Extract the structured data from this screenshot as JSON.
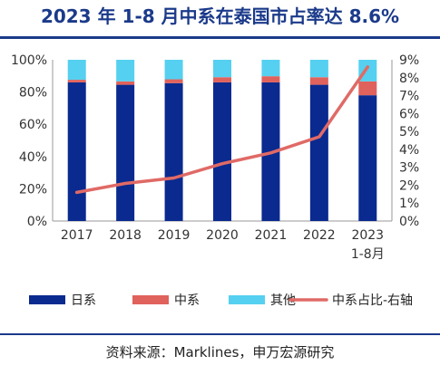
{
  "title": "2023 年 1-8 月中系在泰国市占率达 8.6%",
  "source": "资料来源：Marklines，申万宏源研究",
  "colors": {
    "japan": "#0a2a8f",
    "china": "#e0625c",
    "other": "#55d0f0",
    "line": "#e06a66",
    "title": "#1b3a8a"
  },
  "chart_data": {
    "type": "bar",
    "stacked": true,
    "categories": [
      "2017",
      "2018",
      "2019",
      "2020",
      "2021",
      "2022",
      "2023 1-8月"
    ],
    "category_lines": [
      [
        "2017"
      ],
      [
        "2018"
      ],
      [
        "2019"
      ],
      [
        "2020"
      ],
      [
        "2021"
      ],
      [
        "2022"
      ],
      [
        "2023",
        "1-8月"
      ]
    ],
    "series": [
      {
        "name": "日系",
        "axis": "left",
        "values": [
          86,
          84.5,
          85.5,
          86,
          86,
          84.5,
          78
        ]
      },
      {
        "name": "中系",
        "axis": "left",
        "values": [
          1.6,
          2.1,
          2.4,
          3.2,
          3.8,
          4.7,
          8.6
        ]
      },
      {
        "name": "其他",
        "axis": "left",
        "values": [
          12.4,
          13.4,
          12.1,
          10.8,
          10.2,
          10.8,
          13.4
        ]
      },
      {
        "name": "中系占比-右轴",
        "type": "line",
        "axis": "right",
        "values": [
          1.6,
          2.1,
          2.4,
          3.2,
          3.8,
          4.7,
          8.6
        ]
      }
    ],
    "left_axis": {
      "ylim": [
        0,
        100
      ],
      "ticks": [
        "0%",
        "20%",
        "40%",
        "60%",
        "80%",
        "100%"
      ]
    },
    "right_axis": {
      "ylim": [
        0,
        9
      ],
      "ticks": [
        "0%",
        "1%",
        "2%",
        "3%",
        "4%",
        "5%",
        "6%",
        "7%",
        "8%",
        "9%"
      ]
    },
    "grid": false,
    "legend": {
      "position": "bottom",
      "labels": [
        "日系",
        "中系",
        "其他",
        "中系占比-右轴"
      ]
    }
  }
}
